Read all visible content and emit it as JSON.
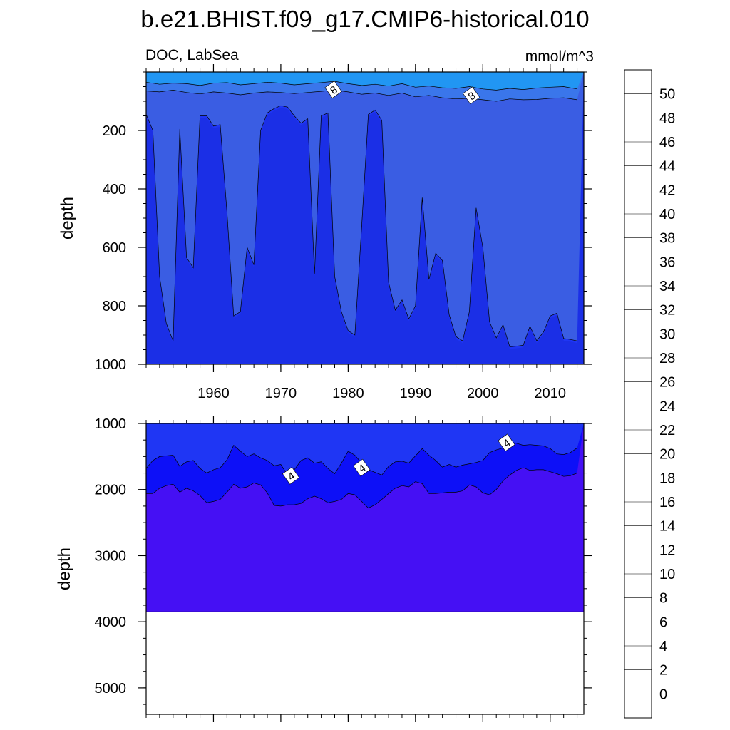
{
  "figure": {
    "title": "b.e21.BHIST.f09_g17.CMIP6-historical.010",
    "variable_label": "DOC, LabSea",
    "units_label": "mmol/m^3"
  },
  "chart_data": [
    {
      "type": "contour",
      "panel": "upper",
      "ylabel": "depth",
      "xlabel": "",
      "xlim": [
        1950,
        2015
      ],
      "ylim": [
        0,
        1000
      ],
      "y_inverted": true,
      "x_ticks": [
        1960,
        1970,
        1980,
        1990,
        2000,
        2010
      ],
      "y_ticks": [
        200,
        400,
        600,
        800,
        1000
      ],
      "contour_labels": [
        {
          "text": "8",
          "x": 1977.8,
          "y": 60
        },
        {
          "text": "8",
          "x": 1998.3,
          "y": 80
        }
      ],
      "fill_levels": [
        {
          "range": "<4",
          "color": "#1b2fe6"
        },
        {
          "range": "4-6",
          "color": "#1f36f4"
        },
        {
          "range": "6-8",
          "color": "#3a5de3"
        },
        {
          "range": "8-10",
          "color": "#3a76eb"
        },
        {
          "range": "10-12",
          "color": "#2196f3"
        }
      ],
      "boundary_6_depth": {
        "x": [
          1950,
          1951,
          1952,
          1953,
          1954,
          1955,
          1956,
          1957,
          1958,
          1959,
          1960,
          1961,
          1962,
          1963,
          1964,
          1965,
          1966,
          1967,
          1968,
          1969,
          1970,
          1971,
          1972,
          1973,
          1974,
          1975,
          1976,
          1977,
          1978,
          1979,
          1980,
          1981,
          1982,
          1983,
          1984,
          1985,
          1986,
          1987,
          1988,
          1989,
          1990,
          1991,
          1992,
          1993,
          1994,
          1995,
          1996,
          1997,
          1998,
          1999,
          2000,
          2001,
          2002,
          2003,
          2004,
          2005,
          2006,
          2007,
          2008,
          2009,
          2010,
          2011,
          2012,
          2013,
          2014
        ],
        "y": [
          145,
          200,
          700,
          860,
          920,
          195,
          635,
          670,
          150,
          150,
          185,
          180,
          480,
          835,
          820,
          600,
          660,
          200,
          140,
          125,
          115,
          120,
          150,
          175,
          160,
          690,
          150,
          140,
          700,
          820,
          885,
          900,
          530,
          145,
          130,
          165,
          720,
          815,
          780,
          845,
          800,
          430,
          710,
          620,
          645,
          830,
          905,
          920,
          820,
          465,
          600,
          855,
          910,
          865,
          940,
          938,
          935,
          870,
          920,
          890,
          835,
          825,
          912,
          915,
          920
        ]
      },
      "boundary_8_depth": {
        "x": [
          1950,
          1952,
          1954,
          1956,
          1958,
          1960,
          1962,
          1964,
          1966,
          1968,
          1970,
          1972,
          1974,
          1976,
          1978,
          1980,
          1982,
          1984,
          1986,
          1988,
          1990,
          1992,
          1994,
          1996,
          1998,
          2000,
          2002,
          2004,
          2006,
          2008,
          2010,
          2012,
          2014
        ],
        "y": [
          65,
          68,
          62,
          70,
          75,
          68,
          72,
          78,
          72,
          68,
          70,
          74,
          70,
          66,
          62,
          68,
          76,
          72,
          80,
          72,
          85,
          80,
          88,
          92,
          90,
          95,
          100,
          92,
          95,
          94,
          90,
          88,
          95
        ]
      },
      "boundary_10_depth": {
        "x": [
          1950,
          1952,
          1954,
          1956,
          1958,
          1960,
          1962,
          1964,
          1966,
          1968,
          1970,
          1972,
          1974,
          1976,
          1978,
          1980,
          1982,
          1984,
          1986,
          1988,
          1990,
          1992,
          1994,
          1996,
          1998,
          2000,
          2002,
          2004,
          2006,
          2008,
          2010,
          2012,
          2014
        ],
        "y": [
          35,
          42,
          38,
          40,
          46,
          38,
          36,
          44,
          40,
          35,
          38,
          44,
          40,
          36,
          32,
          40,
          46,
          42,
          48,
          40,
          52,
          48,
          54,
          56,
          50,
          58,
          62,
          56,
          60,
          55,
          52,
          50,
          58
        ]
      }
    },
    {
      "type": "contour",
      "panel": "lower",
      "ylabel": "depth",
      "xlabel": "",
      "xlim": [
        1950,
        2015
      ],
      "ylim": [
        1000,
        5400
      ],
      "y_inverted": true,
      "x_ticks": [
        1960,
        1970,
        1980,
        1990,
        2000,
        2010
      ],
      "y_ticks": [
        1000,
        2000,
        3000,
        4000,
        5000
      ],
      "bottom_depth": 3850,
      "contour_labels": [
        {
          "text": "4",
          "x": 1971.5,
          "y": 1790
        },
        {
          "text": "4",
          "x": 1982.0,
          "y": 1670
        },
        {
          "text": "4",
          "x": 2003.5,
          "y": 1290
        }
      ],
      "fill_levels": [
        {
          "range": "4-6",
          "color": "#1f36f4"
        },
        {
          "range": "2-4",
          "color": "#0d10f7"
        },
        {
          "range": "<2",
          "color": "#4510f4"
        }
      ],
      "boundary_4_depth": {
        "x": [
          1950,
          1951,
          1952,
          1953,
          1954,
          1955,
          1956,
          1957,
          1958,
          1959,
          1960,
          1961,
          1962,
          1963,
          1964,
          1965,
          1966,
          1967,
          1968,
          1969,
          1970,
          1971,
          1972,
          1973,
          1974,
          1975,
          1976,
          1977,
          1978,
          1979,
          1980,
          1981,
          1982,
          1983,
          1984,
          1985,
          1986,
          1987,
          1988,
          1989,
          1990,
          1991,
          1992,
          1993,
          1994,
          1995,
          1996,
          1997,
          1998,
          1999,
          2000,
          2001,
          2002,
          2003,
          2004,
          2005,
          2006,
          2007,
          2008,
          2009,
          2010,
          2011,
          2012,
          2013,
          2014
        ],
        "y": [
          1680,
          1560,
          1500,
          1490,
          1480,
          1650,
          1580,
          1560,
          1680,
          1750,
          1700,
          1670,
          1550,
          1330,
          1420,
          1500,
          1460,
          1520,
          1560,
          1640,
          1620,
          1780,
          1700,
          1560,
          1520,
          1600,
          1580,
          1680,
          1760,
          1600,
          1420,
          1480,
          1600,
          1700,
          1740,
          1780,
          1650,
          1580,
          1570,
          1600,
          1490,
          1380,
          1480,
          1560,
          1660,
          1620,
          1660,
          1630,
          1610,
          1590,
          1560,
          1440,
          1400,
          1370,
          1280,
          1300,
          1330,
          1320,
          1330,
          1340,
          1380,
          1460,
          1470,
          1440,
          1370
        ]
      },
      "boundary_2_depth": {
        "x": [
          1950,
          1951,
          1952,
          1953,
          1954,
          1955,
          1956,
          1957,
          1958,
          1959,
          1960,
          1961,
          1962,
          1963,
          1964,
          1965,
          1966,
          1967,
          1968,
          1969,
          1970,
          1971,
          1972,
          1973,
          1974,
          1975,
          1976,
          1977,
          1978,
          1979,
          1980,
          1981,
          1982,
          1983,
          1984,
          1985,
          1986,
          1987,
          1988,
          1989,
          1990,
          1991,
          1992,
          1993,
          1994,
          1995,
          1996,
          1997,
          1998,
          1999,
          2000,
          2001,
          2002,
          2003,
          2004,
          2005,
          2006,
          2007,
          2008,
          2009,
          2010,
          2011,
          2012,
          2013,
          2014
        ],
        "y": [
          2060,
          2060,
          1980,
          1940,
          1920,
          2040,
          1980,
          2020,
          2090,
          2200,
          2180,
          2150,
          2040,
          1920,
          1980,
          1960,
          1900,
          1930,
          2050,
          2240,
          2250,
          2230,
          2230,
          2210,
          2140,
          2100,
          2140,
          2200,
          2180,
          2150,
          2060,
          2080,
          2180,
          2280,
          2230,
          2150,
          2060,
          1980,
          1940,
          1960,
          1880,
          1910,
          2060,
          2060,
          2050,
          2040,
          2040,
          2020,
          1930,
          1960,
          2050,
          2080,
          2000,
          1870,
          1780,
          1710,
          1670,
          1710,
          1700,
          1700,
          1730,
          1760,
          1800,
          1790,
          1750
        ]
      }
    }
  ],
  "colorbar": {
    "labels": [
      "50",
      "48",
      "46",
      "44",
      "42",
      "40",
      "38",
      "36",
      "34",
      "32",
      "30",
      "28",
      "26",
      "24",
      "22",
      "20",
      "18",
      "16",
      "14",
      "12",
      "10",
      "8",
      "6",
      "4",
      "2",
      "0"
    ],
    "colors_top_to_bottom": [
      "#ffb0b0",
      "#e05050",
      "#d01010",
      "#e00000",
      "#ff0000",
      "#ff2000",
      "#ff5000",
      "#ff7000",
      "#ff9000",
      "#ffb000",
      "#ffc820",
      "#ffe040",
      "#fff080",
      "#ffffc8",
      "#b0dcf0",
      "#90ccee",
      "#60c0f0",
      "#20bcf8",
      "#00b0f8",
      "#1898f4",
      "#2080ee",
      "#3a70e8",
      "#3a5de3",
      "#1f36f4",
      "#0d10f7",
      "#4510f4",
      "#8a20e8"
    ]
  }
}
